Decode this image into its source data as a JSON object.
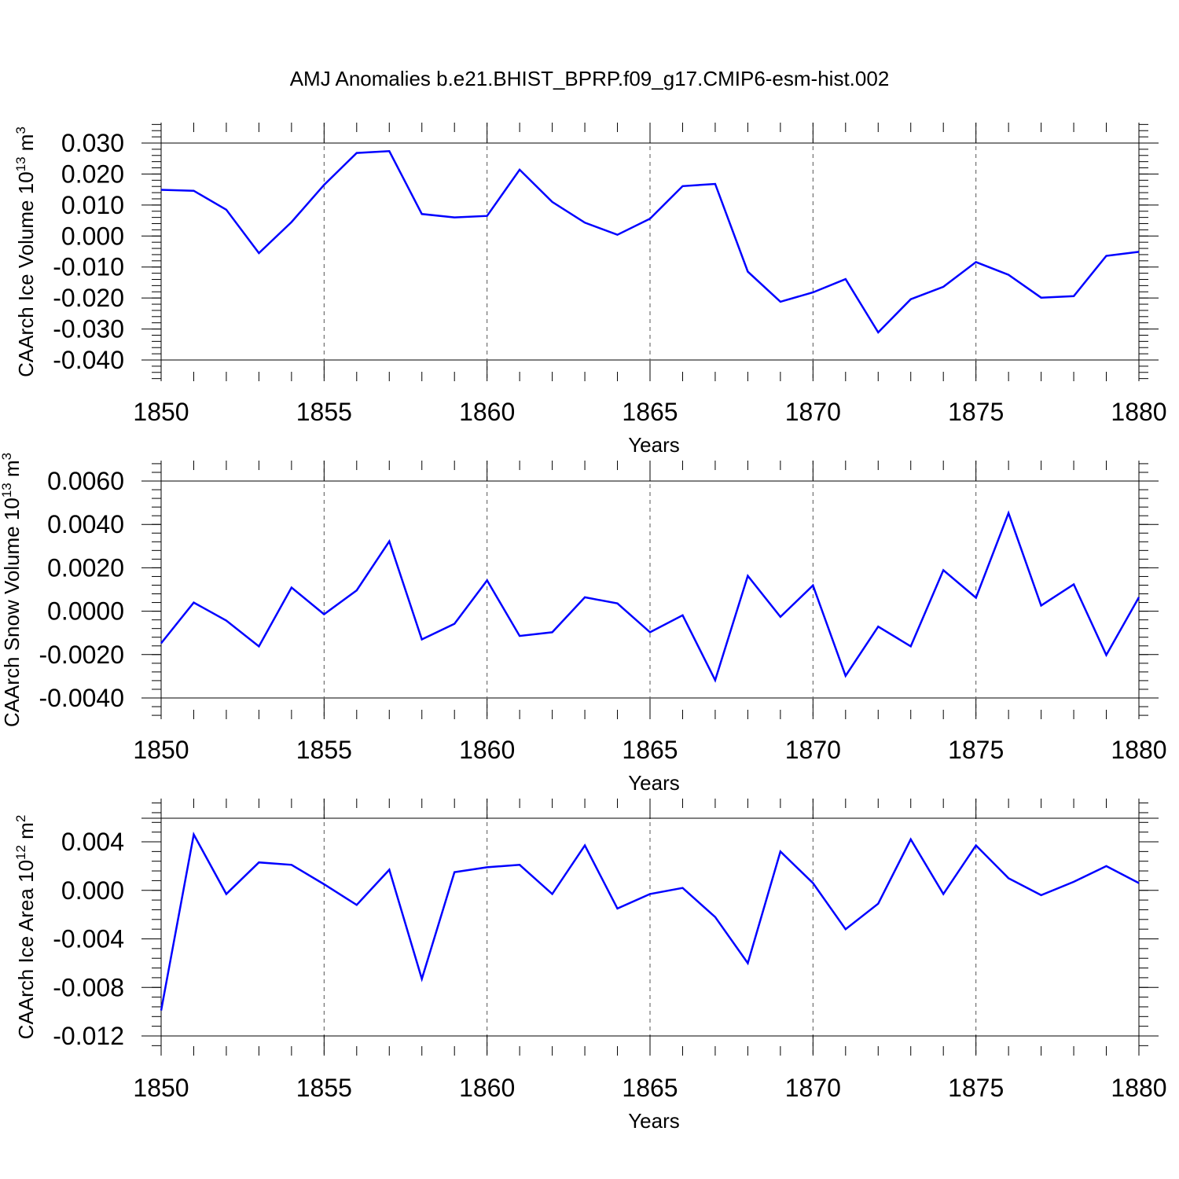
{
  "title": "AMJ Anomalies b.e21.BHIST_BPRP.f09_g17.CMIP6-esm-hist.002",
  "colors": {
    "line": "#0000ff",
    "axes": "#000000",
    "grid": "#555555"
  },
  "chart_data": [
    {
      "type": "line",
      "ylabel": {
        "main": "CAArch Ice Volume 10",
        "sup": "13",
        "unit": " m",
        "unit_sup": "3"
      },
      "xlabel": "Years",
      "xlim": [
        1850,
        1880
      ],
      "ylim": [
        -0.04,
        0.03
      ],
      "xticks": [
        1850,
        1855,
        1860,
        1865,
        1870,
        1875,
        1880
      ],
      "xtick_labels": [
        "1850",
        "1855",
        "1860",
        "1865",
        "1870",
        "1875",
        "1880"
      ],
      "yticks": [
        -0.04,
        -0.03,
        -0.02,
        -0.01,
        0.0,
        0.01,
        0.02,
        0.03
      ],
      "ytick_labels": [
        "-0.040",
        "-0.030",
        "-0.020",
        "-0.010",
        "0.000",
        "0.010",
        "0.020",
        "0.030"
      ],
      "grid": "vertical dashed at major x ticks",
      "series": [
        {
          "x": [
            1850,
            1851,
            1852,
            1853,
            1854,
            1855,
            1856,
            1857,
            1858,
            1859,
            1860,
            1861,
            1862,
            1863,
            1864,
            1865,
            1866,
            1867,
            1868,
            1869,
            1870,
            1871,
            1872,
            1873,
            1874,
            1875,
            1876,
            1877,
            1878,
            1879,
            1880
          ],
          "values": [
            0.0149,
            0.0146,
            0.0085,
            -0.0055,
            0.0045,
            0.0165,
            0.0268,
            0.0274,
            0.0071,
            0.006,
            0.0065,
            0.0214,
            0.011,
            0.0043,
            0.0004,
            0.0056,
            0.0161,
            0.0168,
            -0.0115,
            -0.0212,
            -0.0182,
            -0.0139,
            -0.0311,
            -0.0204,
            -0.0164,
            -0.0084,
            -0.0125,
            -0.0199,
            -0.0194,
            -0.0064,
            -0.0051
          ]
        }
      ]
    },
    {
      "type": "line",
      "ylabel": {
        "main": "CAArch Snow Volume 10",
        "sup": "13",
        "unit": " m",
        "unit_sup": "3"
      },
      "xlabel": "Years",
      "xlim": [
        1850,
        1880
      ],
      "ylim": [
        -0.004,
        0.0061
      ],
      "xticks": [
        1850,
        1855,
        1860,
        1865,
        1870,
        1875,
        1880
      ],
      "xtick_labels": [
        "1850",
        "1855",
        "1860",
        "1865",
        "1870",
        "1875",
        "1880"
      ],
      "yticks": [
        -0.004,
        -0.002,
        0.0,
        0.002,
        0.004,
        0.006
      ],
      "ytick_labels": [
        "-0.0040",
        "-0.0020",
        "0.0000",
        "0.0020",
        "0.0040",
        "0.0060"
      ],
      "grid": "vertical dashed at major x ticks",
      "series": [
        {
          "x": [
            1850,
            1851,
            1852,
            1853,
            1854,
            1855,
            1856,
            1857,
            1858,
            1859,
            1860,
            1861,
            1862,
            1863,
            1864,
            1865,
            1866,
            1867,
            1868,
            1869,
            1870,
            1871,
            1872,
            1873,
            1874,
            1875,
            1876,
            1877,
            1878,
            1879,
            1880
          ],
          "values": [
            -0.00148,
            0.0004,
            -0.00043,
            -0.00162,
            0.00109,
            -0.00014,
            0.00096,
            0.00322,
            -0.0013,
            -0.00058,
            0.00142,
            -0.00114,
            -0.00097,
            0.00064,
            0.00036,
            -0.00097,
            -0.00019,
            -0.00318,
            0.00163,
            -0.00026,
            0.00119,
            -0.00298,
            -0.00071,
            -0.00162,
            0.00189,
            0.00062,
            0.00452,
            0.00026,
            0.00124,
            -0.00202,
            0.00064
          ]
        }
      ]
    },
    {
      "type": "line",
      "ylabel": {
        "main": "CAArch Ice Area 10",
        "sup": "12",
        "unit": " m",
        "unit_sup": "2"
      },
      "xlabel": "Years",
      "xlim": [
        1850,
        1880
      ],
      "ylim": [
        -0.012,
        0.006
      ],
      "xticks": [
        1850,
        1855,
        1860,
        1865,
        1870,
        1875,
        1880
      ],
      "xtick_labels": [
        "1850",
        "1855",
        "1860",
        "1865",
        "1870",
        "1875",
        "1880"
      ],
      "yticks": [
        -0.012,
        -0.008,
        -0.004,
        0.0,
        0.004
      ],
      "ytick_labels": [
        "-0.012",
        "-0.008",
        "-0.004",
        "0.000",
        "0.004"
      ],
      "grid": "vertical dashed at major x ticks",
      "series": [
        {
          "x": [
            1850,
            1851,
            1852,
            1853,
            1854,
            1855,
            1856,
            1857,
            1858,
            1859,
            1860,
            1861,
            1862,
            1863,
            1864,
            1865,
            1866,
            1867,
            1868,
            1869,
            1870,
            1871,
            1872,
            1873,
            1874,
            1875,
            1876,
            1877,
            1878,
            1879,
            1880
          ],
          "values": [
            -0.0099,
            0.0046,
            -0.0003,
            0.0023,
            0.0021,
            0.0005,
            -0.0012,
            0.0017,
            -0.0073,
            0.0015,
            0.0019,
            0.0021,
            -0.0003,
            0.0037,
            -0.0015,
            -0.0003,
            0.0002,
            -0.0022,
            -0.006,
            0.0032,
            0.0006,
            -0.0032,
            -0.0011,
            0.0042,
            -0.0003,
            0.0037,
            0.001,
            -0.0004,
            0.0007,
            0.002,
            0.0006
          ]
        }
      ]
    }
  ]
}
